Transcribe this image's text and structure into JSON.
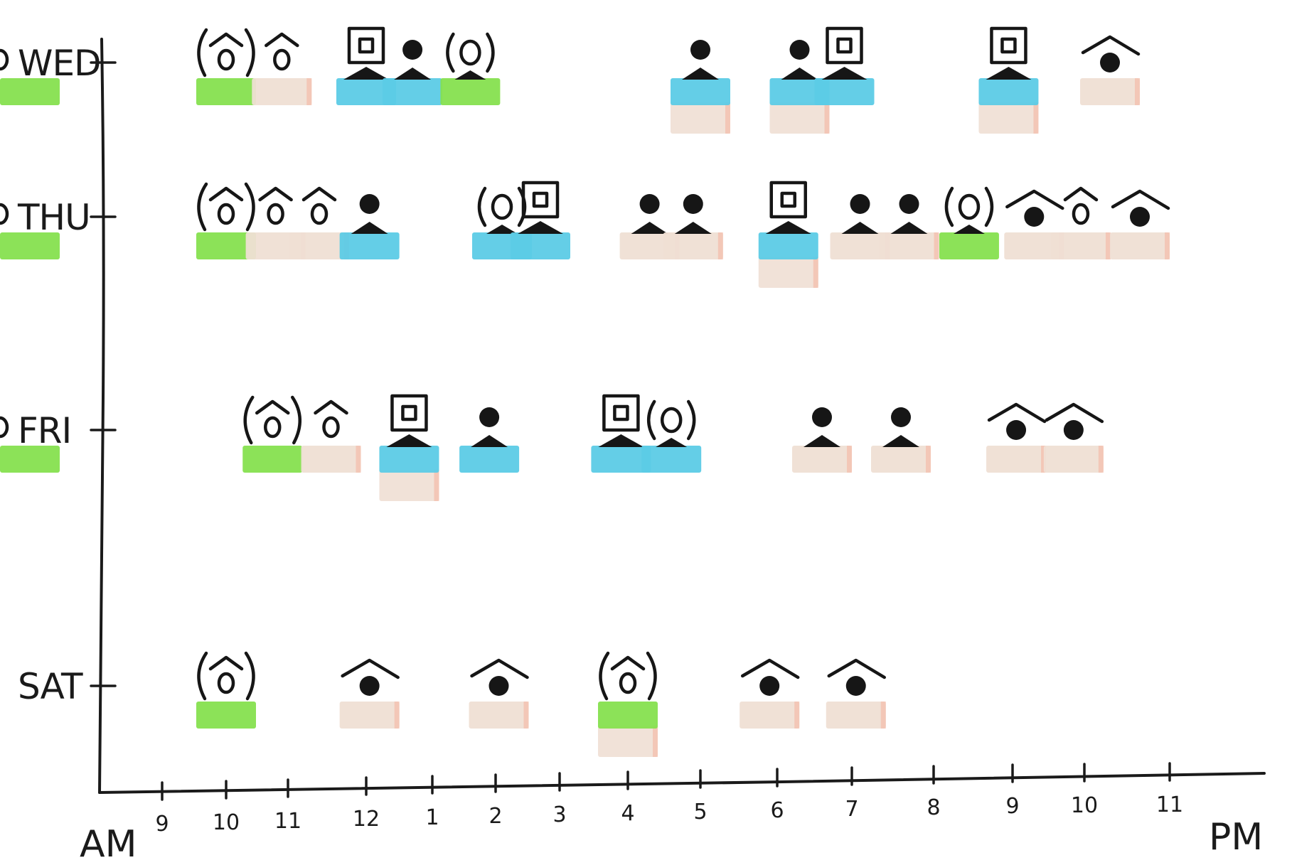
{
  "colors": {
    "ink": "#161616",
    "green": "#86e04f",
    "blue": "#5ccbe6",
    "beige": "#efdfd4",
    "beige_edge": "#f4bcaa"
  },
  "axis": {
    "start_label": "AM",
    "end_label": "PM",
    "hour_labels": [
      "9",
      "10",
      "11",
      "12",
      "1",
      "2",
      "3",
      "4",
      "5",
      "6",
      "7",
      "8",
      "9",
      "10",
      "11"
    ]
  },
  "days": [
    {
      "label": "WED",
      "events": [
        {
          "hour": 10.0,
          "icon": "bracket-house",
          "color": "green"
        },
        {
          "hour": 10.9,
          "icon": "house",
          "color": "beige"
        },
        {
          "hour": 12.0,
          "icon": "monitor-person",
          "color": "blue"
        },
        {
          "hour": 12.7,
          "icon": "person",
          "color": "blue"
        },
        {
          "hour": 13.6,
          "icon": "bracket-target",
          "color": "green"
        },
        {
          "hour": 17.0,
          "icon": "person",
          "color": "blue",
          "lower": "beige"
        },
        {
          "hour": 18.3,
          "icon": "person",
          "color": "blue",
          "lower": "beige"
        },
        {
          "hour": 18.9,
          "icon": "monitor-person",
          "color": "blue"
        },
        {
          "hour": 20.95,
          "icon": "monitor-person",
          "color": "blue",
          "lower": "beige"
        },
        {
          "hour": 22.3,
          "icon": "roof-dot",
          "color": "beige"
        },
        {
          "hour": 23.15,
          "icon": "bracket-house",
          "color": "green"
        }
      ]
    },
    {
      "label": "THU",
      "events": [
        {
          "hour": 10.0,
          "icon": "bracket-house",
          "color": "green"
        },
        {
          "hour": 10.8,
          "icon": "house",
          "color": "beige"
        },
        {
          "hour": 11.4,
          "icon": "house",
          "color": "beige"
        },
        {
          "hour": 12.05,
          "icon": "person",
          "color": "blue"
        },
        {
          "hour": 14.1,
          "icon": "bracket-target",
          "color": "blue"
        },
        {
          "hour": 14.7,
          "icon": "monitor-person",
          "color": "blue"
        },
        {
          "hour": 16.3,
          "icon": "person",
          "color": "beige"
        },
        {
          "hour": 16.9,
          "icon": "person",
          "color": "beige"
        },
        {
          "hour": 18.15,
          "icon": "monitor-person",
          "color": "blue",
          "lower": "beige"
        },
        {
          "hour": 19.1,
          "icon": "person",
          "color": "beige"
        },
        {
          "hour": 19.7,
          "icon": "person",
          "color": "beige"
        },
        {
          "hour": 20.45,
          "icon": "bracket-target",
          "color": "green"
        },
        {
          "hour": 21.3,
          "icon": "roof-dot",
          "color": "beige"
        },
        {
          "hour": 21.95,
          "icon": "house",
          "color": "beige"
        },
        {
          "hour": 22.65,
          "icon": "roof-dot",
          "color": "beige"
        },
        {
          "hour": 23.45,
          "icon": "bracket-house",
          "color": "green"
        }
      ]
    },
    {
      "label": "FRI",
      "events": [
        {
          "hour": 10.75,
          "icon": "bracket-house",
          "color": "green"
        },
        {
          "hour": 11.55,
          "icon": "house",
          "color": "beige"
        },
        {
          "hour": 12.65,
          "icon": "monitor-person",
          "color": "blue",
          "lower": "beige"
        },
        {
          "hour": 13.9,
          "icon": "person",
          "color": "blue"
        },
        {
          "hour": 15.9,
          "icon": "monitor-person",
          "color": "blue"
        },
        {
          "hour": 16.6,
          "icon": "bracket-target",
          "color": "blue"
        },
        {
          "hour": 18.6,
          "icon": "person",
          "color": "beige"
        },
        {
          "hour": 19.6,
          "icon": "person",
          "color": "beige"
        },
        {
          "hour": 21.05,
          "icon": "roof-dot",
          "color": "beige"
        },
        {
          "hour": 21.85,
          "icon": "roof-dot",
          "color": "beige"
        },
        {
          "hour": 23.15,
          "icon": "bracket-house",
          "color": "green"
        }
      ]
    },
    {
      "label": "SAT",
      "events": [
        {
          "hour": 10.0,
          "icon": "bracket-house",
          "color": "green"
        },
        {
          "hour": 12.05,
          "icon": "roof-dot",
          "color": "beige"
        },
        {
          "hour": 14.05,
          "icon": "roof-dot",
          "color": "beige"
        },
        {
          "hour": 16.0,
          "icon": "bracket-house",
          "color": "green",
          "lower": "beige"
        },
        {
          "hour": 17.9,
          "icon": "roof-dot",
          "color": "beige"
        },
        {
          "hour": 19.05,
          "icon": "roof-dot",
          "color": "beige"
        }
      ]
    }
  ]
}
